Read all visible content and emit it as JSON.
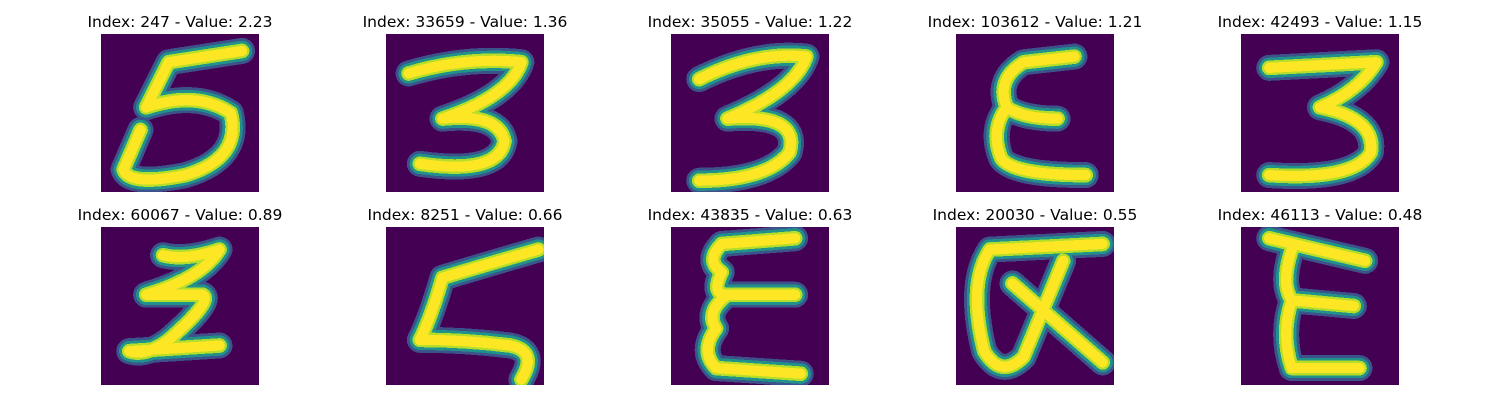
{
  "colors": {
    "background": "#440154",
    "mid_stroke": "#21918c",
    "edge_stroke": "#3b528b",
    "core_stroke": "#fde725",
    "inner_stroke": "#b5de2b"
  },
  "panels": [
    {
      "title": "Index: 247 - Value: 2.23",
      "glyph": "5"
    },
    {
      "title": "Index: 33659 - Value: 1.36",
      "glyph": "3"
    },
    {
      "title": "Index: 35055 - Value: 1.22",
      "glyph": "3"
    },
    {
      "title": "Index: 103612 - Value: 1.21",
      "glyph": "ε"
    },
    {
      "title": "Index: 42493 - Value: 1.15",
      "glyph": "3"
    },
    {
      "title": "Index: 60067 - Value: 0.89",
      "glyph": "z"
    },
    {
      "title": "Index: 8251 - Value: 0.66",
      "glyph": "z"
    },
    {
      "title": "Index: 43835 - Value: 0.63",
      "glyph": "ε"
    },
    {
      "title": "Index: 20030 - Value: 0.55",
      "glyph": "α"
    },
    {
      "title": "Index: 46113 - Value: 0.48",
      "glyph": "E"
    }
  ]
}
